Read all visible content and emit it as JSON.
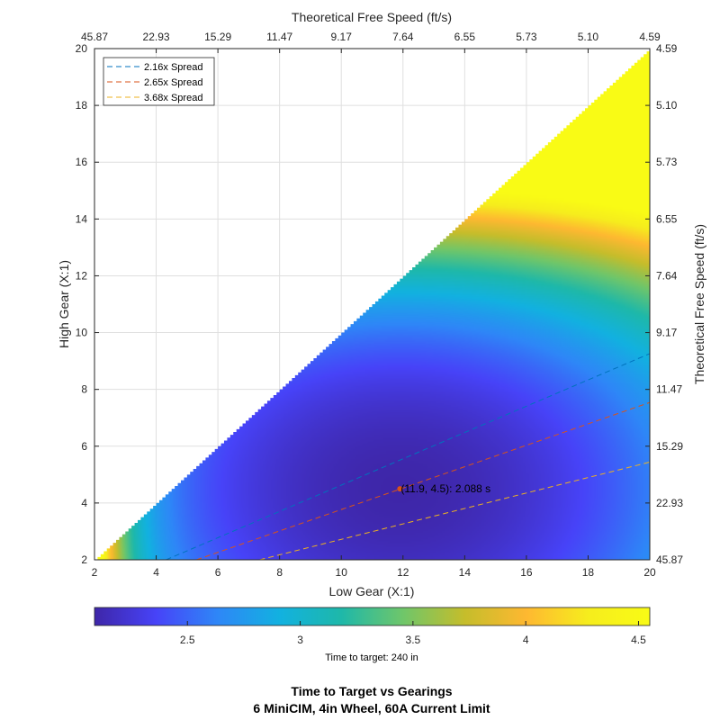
{
  "chart_data": {
    "type": "heatmap",
    "title": [
      "Time to Target vs Gearings",
      "6 MiniCIM, 4in Wheel, 60A Current Limit"
    ],
    "xlabel": "Low Gear (X:1)",
    "ylabel": "High Gear (X:1)",
    "x2label": "Theoretical Free Speed (ft/s)",
    "y2label": "Theoretical Free Speed (ft/s)",
    "xlim": [
      2,
      20
    ],
    "ylim": [
      2,
      20
    ],
    "xticks": [
      2,
      4,
      6,
      8,
      10,
      12,
      14,
      16,
      18,
      20
    ],
    "yticks": [
      2,
      4,
      6,
      8,
      10,
      12,
      14,
      16,
      18,
      20
    ],
    "x2ticks": [
      "45.87",
      "22.93",
      "15.29",
      "11.47",
      "9.17",
      "7.64",
      "6.55",
      "5.73",
      "5.10",
      "4.59"
    ],
    "y2ticks": [
      "45.87",
      "22.93",
      "15.29",
      "11.47",
      "9.17",
      "7.64",
      "6.55",
      "5.73",
      "5.10",
      "4.59"
    ],
    "grid": true,
    "colorbar": {
      "label": "Time to target: 240 in",
      "range": [
        2.088,
        4.55
      ],
      "ticks": [
        2.5,
        3,
        3.5,
        4,
        4.5
      ],
      "tick_labels": [
        "2.5",
        "3",
        "3.5",
        "4",
        "4.5"
      ],
      "colormap": [
        "#3e26a8",
        "#4743f8",
        "#2e87f7",
        "#12b1e0",
        "#1eb8a9",
        "#6fc66a",
        "#c5bd2b",
        "#feb831",
        "#f6ed1d",
        "#f9fb15"
      ]
    },
    "legend": {
      "placement": "top-left",
      "entries": [
        {
          "name": "2.16x Spread",
          "color": "#0072bd",
          "slope": 0.463
        },
        {
          "name": "2.65x Spread",
          "color": "#d95319",
          "slope": 0.377
        },
        {
          "name": "3.68x Spread",
          "color": "#edb120",
          "slope": 0.272
        }
      ]
    },
    "annotation": {
      "text": "(11.9, 4.5): 2.088 s",
      "x": 11.9,
      "y": 4.5
    },
    "region": "x >= y",
    "surface_samples": [
      {
        "x": 2.2,
        "y": 2.0,
        "value": 4.3
      },
      {
        "x": 3.0,
        "y": 2.5,
        "value": 3.3
      },
      {
        "x": 4.0,
        "y": 3.5,
        "value": 2.6
      },
      {
        "x": 6.0,
        "y": 5.0,
        "value": 2.25
      },
      {
        "x": 8.0,
        "y": 7.5,
        "value": 2.2
      },
      {
        "x": 11.9,
        "y": 4.5,
        "value": 2.088
      },
      {
        "x": 14.0,
        "y": 12.0,
        "value": 3.0
      },
      {
        "x": 20.0,
        "y": 14.0,
        "value": 3.2
      },
      {
        "x": 20.0,
        "y": 18.0,
        "value": 3.9
      },
      {
        "x": 20.0,
        "y": 20.0,
        "value": 4.55
      }
    ]
  }
}
